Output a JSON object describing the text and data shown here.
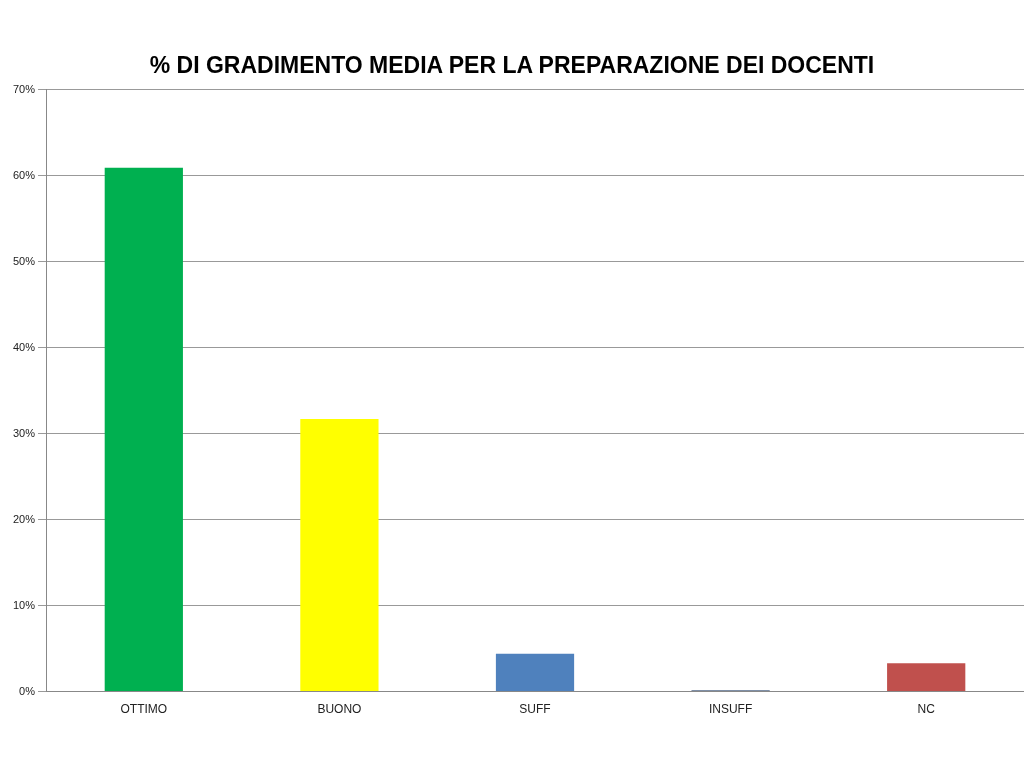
{
  "chart_data": {
    "type": "bar",
    "title": "% DI GRADIMENTO MEDIA PER LA PREPARAZIONE DEI DOCENTI",
    "categories": [
      "OTTIMO",
      "BUONO",
      "SUFF",
      "INSUFF",
      "NC"
    ],
    "values": [
      60.9,
      31.7,
      4.4,
      0.2,
      3.3
    ],
    "colors": [
      "#00b050",
      "#ffff00",
      "#4f81bd",
      "#7f8fa6",
      "#c0504d"
    ],
    "ylim": [
      0,
      70
    ],
    "yticks": [
      {
        "value": 0,
        "label": "0%"
      },
      {
        "value": 10,
        "label": "10%"
      },
      {
        "value": 20,
        "label": "20%"
      },
      {
        "value": 30,
        "label": "30%"
      },
      {
        "value": 40,
        "label": "40%"
      },
      {
        "value": 50,
        "label": "50%"
      },
      {
        "value": 60,
        "label": "60%"
      },
      {
        "value": 70,
        "label": "70%"
      }
    ],
    "grid": "y",
    "legend": false
  }
}
